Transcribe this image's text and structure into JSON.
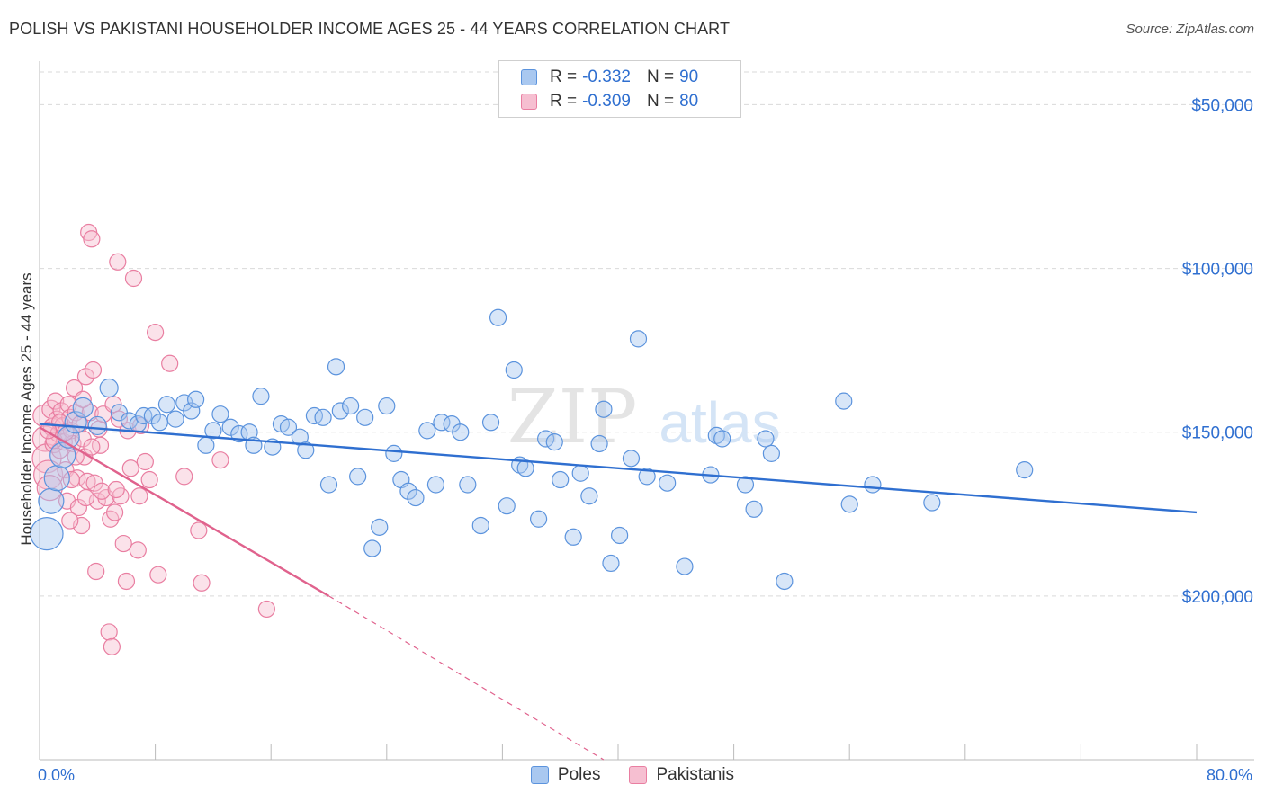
{
  "title": "POLISH VS PAKISTANI HOUSEHOLDER INCOME AGES 25 - 44 YEARS CORRELATION CHART",
  "source": "Source: ZipAtlas.com",
  "watermark": "ZIPatlas",
  "colors": {
    "poles": "#5b93dd",
    "poles_fill": "#a9c8f0",
    "poles_line": "#2f6fd0",
    "pakistanis": "#e97ea1",
    "pakistanis_fill": "#f6bfd1",
    "pakistanis_line": "#e0628d",
    "axis_text": "#2f6fd0",
    "grid": "#d9d9d9"
  },
  "legend_top": {
    "rows": [
      {
        "r_label": "R = ",
        "r_value": "-0.332",
        "n_label": "N = ",
        "n_value": "90"
      },
      {
        "r_label": "R = ",
        "r_value": "-0.309",
        "n_label": "N = ",
        "n_value": "80"
      }
    ]
  },
  "legend_bottom": [
    "Poles",
    "Pakistanis"
  ],
  "x_axis": {
    "min_label": "0.0%",
    "max_label": "80.0%"
  },
  "y_axis_label": "Householder Income Ages 25 - 44 years",
  "y_ticks": [
    "$200,000",
    "$150,000",
    "$100,000",
    "$50,000"
  ],
  "chart_data": {
    "type": "scatter",
    "xlabel": "",
    "ylabel": "Householder Income Ages 25 - 44 years",
    "xlim": [
      0,
      80
    ],
    "ylim": [
      0,
      210000
    ],
    "y_tick_values": [
      50000,
      100000,
      150000,
      200000
    ],
    "series": [
      {
        "name": "Poles",
        "r": -0.332,
        "n": 90,
        "trend": {
          "x": [
            0,
            80
          ],
          "y": [
            102500,
            75500
          ]
        },
        "points": [
          [
            0.5,
            69000,
            18
          ],
          [
            0.8,
            79000,
            14
          ],
          [
            1.2,
            86000,
            14
          ],
          [
            1.6,
            93000,
            14
          ],
          [
            2.0,
            98500,
            12
          ],
          [
            2.5,
            103000,
            12
          ],
          [
            3.0,
            107500,
            11
          ],
          [
            4.0,
            102000,
            10
          ],
          [
            4.8,
            113500,
            10
          ],
          [
            5.5,
            106000,
            9
          ],
          [
            6.2,
            103500,
            9
          ],
          [
            6.8,
            102500,
            9
          ],
          [
            7.2,
            105000,
            9
          ],
          [
            7.8,
            105000,
            9
          ],
          [
            8.3,
            103000,
            9
          ],
          [
            8.8,
            108500,
            9
          ],
          [
            9.4,
            104000,
            9
          ],
          [
            10.0,
            109000,
            9
          ],
          [
            10.5,
            106500,
            9
          ],
          [
            10.8,
            110000,
            9
          ],
          [
            11.5,
            96000,
            9
          ],
          [
            12.0,
            100500,
            9
          ],
          [
            12.5,
            105500,
            9
          ],
          [
            13.2,
            101500,
            9
          ],
          [
            13.8,
            99500,
            9
          ],
          [
            14.5,
            100000,
            9
          ],
          [
            14.8,
            96000,
            9
          ],
          [
            15.3,
            111000,
            9
          ],
          [
            16.1,
            95500,
            9
          ],
          [
            16.7,
            102500,
            9
          ],
          [
            17.2,
            101500,
            9
          ],
          [
            18.0,
            98500,
            9
          ],
          [
            18.4,
            94500,
            9
          ],
          [
            19.0,
            105000,
            9
          ],
          [
            19.6,
            104500,
            9
          ],
          [
            20.0,
            84000,
            9
          ],
          [
            20.5,
            120000,
            9
          ],
          [
            20.8,
            106500,
            9
          ],
          [
            21.5,
            108000,
            9
          ],
          [
            22.0,
            86500,
            9
          ],
          [
            22.5,
            104500,
            9
          ],
          [
            23.0,
            64500,
            9
          ],
          [
            23.5,
            71000,
            9
          ],
          [
            24.0,
            108000,
            9
          ],
          [
            24.5,
            93500,
            9
          ],
          [
            25.0,
            85500,
            9
          ],
          [
            25.5,
            82000,
            9
          ],
          [
            26.0,
            80000,
            9
          ],
          [
            26.8,
            100500,
            9
          ],
          [
            27.4,
            84000,
            9
          ],
          [
            27.8,
            103000,
            9
          ],
          [
            28.5,
            102500,
            9
          ],
          [
            29.1,
            100000,
            9
          ],
          [
            29.6,
            84000,
            9
          ],
          [
            30.5,
            71500,
            9
          ],
          [
            31.2,
            103000,
            9
          ],
          [
            31.7,
            135000,
            9
          ],
          [
            32.3,
            77500,
            9
          ],
          [
            32.8,
            119000,
            9
          ],
          [
            33.2,
            90000,
            9
          ],
          [
            33.6,
            89000,
            9
          ],
          [
            34.5,
            73500,
            9
          ],
          [
            35.0,
            98000,
            9
          ],
          [
            35.6,
            97000,
            9
          ],
          [
            36.0,
            85500,
            9
          ],
          [
            36.9,
            68000,
            9
          ],
          [
            37.4,
            87500,
            9
          ],
          [
            38.0,
            80500,
            9
          ],
          [
            38.7,
            96500,
            9
          ],
          [
            39.0,
            107000,
            9
          ],
          [
            39.5,
            60000,
            9
          ],
          [
            40.1,
            68500,
            9
          ],
          [
            40.9,
            92000,
            9
          ],
          [
            41.4,
            128500,
            9
          ],
          [
            42.0,
            86500,
            9
          ],
          [
            43.4,
            84500,
            9
          ],
          [
            44.6,
            59000,
            9
          ],
          [
            46.4,
            87000,
            9
          ],
          [
            46.8,
            99000,
            9
          ],
          [
            47.2,
            98000,
            9
          ],
          [
            48.8,
            84000,
            9
          ],
          [
            49.4,
            76500,
            9
          ],
          [
            50.2,
            98000,
            9
          ],
          [
            50.6,
            93500,
            9
          ],
          [
            51.5,
            54500,
            9
          ],
          [
            55.6,
            109500,
            9
          ],
          [
            56.0,
            78000,
            9
          ],
          [
            57.6,
            84000,
            9
          ],
          [
            61.7,
            78500,
            9
          ],
          [
            68.1,
            88500,
            9
          ]
        ]
      },
      {
        "name": "Pakistanis",
        "r": -0.309,
        "n": 80,
        "trend": {
          "x": [
            0,
            20
          ],
          "y": [
            101500,
            50000
          ]
        },
        "trend_dashed": {
          "x": [
            20,
            39
          ],
          "y": [
            50000,
            0
          ]
        },
        "points": [
          [
            0.3,
            105000,
            12
          ],
          [
            0.4,
            98000,
            14
          ],
          [
            0.5,
            92000,
            16
          ],
          [
            0.6,
            87000,
            16
          ],
          [
            0.7,
            83000,
            14
          ],
          [
            0.8,
            107000,
            10
          ],
          [
            0.9,
            101500,
            10
          ],
          [
            1.0,
            96500,
            10
          ],
          [
            1.1,
            109500,
            9
          ],
          [
            1.2,
            104000,
            9
          ],
          [
            1.3,
            99500,
            9
          ],
          [
            1.4,
            94500,
            9
          ],
          [
            1.5,
            106500,
            9
          ],
          [
            1.6,
            102000,
            9
          ],
          [
            1.7,
            97000,
            9
          ],
          [
            1.8,
            88500,
            9
          ],
          [
            1.9,
            79000,
            9
          ],
          [
            2.0,
            108500,
            9
          ],
          [
            2.1,
            104500,
            9
          ],
          [
            2.2,
            100500,
            9
          ],
          [
            2.3,
            96500,
            9
          ],
          [
            2.4,
            113500,
            9
          ],
          [
            2.5,
            106000,
            9
          ],
          [
            2.6,
            86000,
            9
          ],
          [
            2.7,
            77000,
            9
          ],
          [
            2.8,
            102500,
            9
          ],
          [
            2.9,
            71500,
            9
          ],
          [
            3.0,
            98000,
            9
          ],
          [
            3.1,
            92500,
            9
          ],
          [
            3.2,
            117000,
            9
          ],
          [
            3.3,
            85000,
            9
          ],
          [
            3.4,
            161000,
            9
          ],
          [
            3.5,
            106000,
            9
          ],
          [
            3.6,
            159000,
            9
          ],
          [
            3.7,
            119000,
            9
          ],
          [
            3.8,
            84500,
            9
          ],
          [
            3.9,
            57500,
            9
          ],
          [
            4.0,
            79000,
            9
          ],
          [
            4.1,
            101000,
            9
          ],
          [
            4.2,
            96000,
            9
          ],
          [
            4.4,
            105500,
            9
          ],
          [
            4.6,
            80000,
            9
          ],
          [
            4.8,
            39000,
            9
          ],
          [
            4.9,
            73500,
            9
          ],
          [
            5.0,
            34500,
            9
          ],
          [
            5.1,
            108500,
            9
          ],
          [
            5.2,
            75500,
            9
          ],
          [
            5.4,
            152000,
            9
          ],
          [
            5.5,
            104000,
            9
          ],
          [
            5.6,
            80500,
            9
          ],
          [
            5.8,
            66000,
            9
          ],
          [
            6.0,
            54500,
            9
          ],
          [
            6.1,
            100500,
            9
          ],
          [
            6.3,
            89000,
            9
          ],
          [
            6.5,
            147000,
            9
          ],
          [
            6.8,
            64000,
            9
          ],
          [
            7.0,
            102000,
            9
          ],
          [
            7.3,
            91000,
            9
          ],
          [
            7.6,
            85500,
            9
          ],
          [
            8.0,
            130500,
            9
          ],
          [
            8.2,
            56500,
            9
          ],
          [
            9.0,
            121000,
            9
          ],
          [
            10.0,
            86500,
            9
          ],
          [
            11.0,
            70000,
            9
          ],
          [
            11.2,
            54000,
            9
          ],
          [
            12.5,
            91500,
            9
          ],
          [
            15.7,
            46000,
            9
          ],
          [
            1.0,
            97500,
            9
          ],
          [
            1.4,
            103000,
            9
          ],
          [
            2.2,
            85500,
            9
          ],
          [
            3.0,
            110000,
            9
          ],
          [
            3.6,
            95500,
            9
          ],
          [
            4.3,
            82000,
            9
          ],
          [
            2.5,
            92500,
            9
          ],
          [
            1.8,
            100000,
            9
          ],
          [
            0.6,
            100500,
            9
          ],
          [
            5.3,
            82500,
            9
          ],
          [
            6.9,
            80500,
            9
          ],
          [
            3.2,
            80000,
            9
          ],
          [
            2.1,
            73000,
            9
          ]
        ]
      }
    ]
  }
}
